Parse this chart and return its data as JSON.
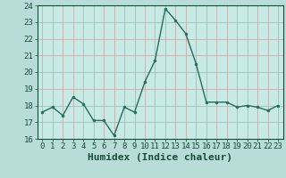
{
  "x": [
    0,
    1,
    2,
    3,
    4,
    5,
    6,
    7,
    8,
    9,
    10,
    11,
    12,
    13,
    14,
    15,
    16,
    17,
    18,
    19,
    20,
    21,
    22,
    23
  ],
  "y": [
    17.6,
    17.9,
    17.4,
    18.5,
    18.1,
    17.1,
    17.1,
    16.2,
    17.9,
    17.6,
    19.4,
    20.7,
    23.8,
    23.1,
    22.3,
    20.5,
    18.2,
    18.2,
    18.2,
    17.9,
    18.0,
    17.9,
    17.7,
    18.0
  ],
  "line_color": "#2a6b5e",
  "marker_color": "#2a6b5e",
  "bg_color": "#b8ddd8",
  "plot_bg_color": "#c8eae4",
  "grid_color": "#c0b0b0",
  "xlabel": "Humidex (Indice chaleur)",
  "ylim": [
    16,
    24
  ],
  "xlim": [
    -0.5,
    23.5
  ],
  "yticks": [
    16,
    17,
    18,
    19,
    20,
    21,
    22,
    23,
    24
  ],
  "xticks": [
    0,
    1,
    2,
    3,
    4,
    5,
    6,
    7,
    8,
    9,
    10,
    11,
    12,
    13,
    14,
    15,
    16,
    17,
    18,
    19,
    20,
    21,
    22,
    23
  ],
  "tick_color": "#1a4a3a",
  "xlabel_fontsize": 8,
  "tick_fontsize": 6.5
}
